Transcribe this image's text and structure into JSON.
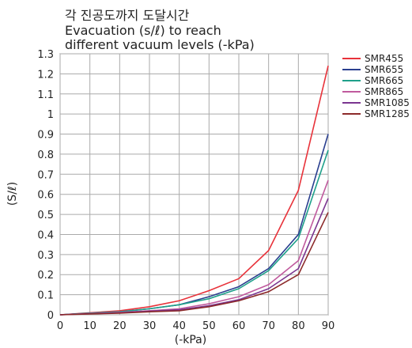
{
  "chart_data": {
    "type": "line",
    "title_lines": [
      "각 진공도까지 도달시간",
      "Evacuation (s/ℓ) to reach",
      "different vacuum levels (-kPa)"
    ],
    "xlabel": "(-kPa)",
    "ylabel": "(S/ℓ)",
    "xlim": [
      0,
      90
    ],
    "ylim": [
      0,
      1.3
    ],
    "x_ticks": [
      0,
      10,
      20,
      30,
      40,
      50,
      60,
      70,
      80,
      90
    ],
    "y_ticks": [
      0,
      0.1,
      0.2,
      0.3,
      0.4,
      0.5,
      0.6,
      0.7,
      0.8,
      0.9,
      1,
      1.1,
      1.2,
      1.3
    ],
    "y_tick_labels": [
      "0",
      "0.1",
      "0.2",
      "0.3",
      "0.4",
      "0.5",
      "0.6",
      "0.7",
      "0.8",
      "0.9",
      "1",
      "1.1",
      "1.2",
      "1.3"
    ],
    "grid": true,
    "legend_position": "right",
    "x": [
      0,
      10,
      20,
      30,
      40,
      50,
      60,
      70,
      80,
      90
    ],
    "series": [
      {
        "name": "SMR455",
        "color": "#e8323a",
        "values": [
          0,
          0.01,
          0.02,
          0.04,
          0.07,
          0.12,
          0.18,
          0.32,
          0.62,
          1.24
        ]
      },
      {
        "name": "SMR655",
        "color": "#2a3f8f",
        "values": [
          0,
          0.008,
          0.015,
          0.03,
          0.05,
          0.09,
          0.14,
          0.23,
          0.4,
          0.9
        ]
      },
      {
        "name": "SMR665",
        "color": "#1fa08a",
        "values": [
          0,
          0.008,
          0.015,
          0.03,
          0.05,
          0.08,
          0.13,
          0.22,
          0.38,
          0.82
        ]
      },
      {
        "name": "SMR865",
        "color": "#c05a9e",
        "values": [
          0,
          0.006,
          0.012,
          0.02,
          0.03,
          0.055,
          0.09,
          0.15,
          0.27,
          0.67
        ]
      },
      {
        "name": "SMR1085",
        "color": "#7a3590",
        "values": [
          0,
          0.005,
          0.01,
          0.018,
          0.025,
          0.045,
          0.075,
          0.13,
          0.23,
          0.58
        ]
      },
      {
        "name": "SMR1285",
        "color": "#8c2a2a",
        "values": [
          0,
          0.004,
          0.008,
          0.015,
          0.02,
          0.04,
          0.07,
          0.115,
          0.2,
          0.51
        ]
      }
    ]
  }
}
